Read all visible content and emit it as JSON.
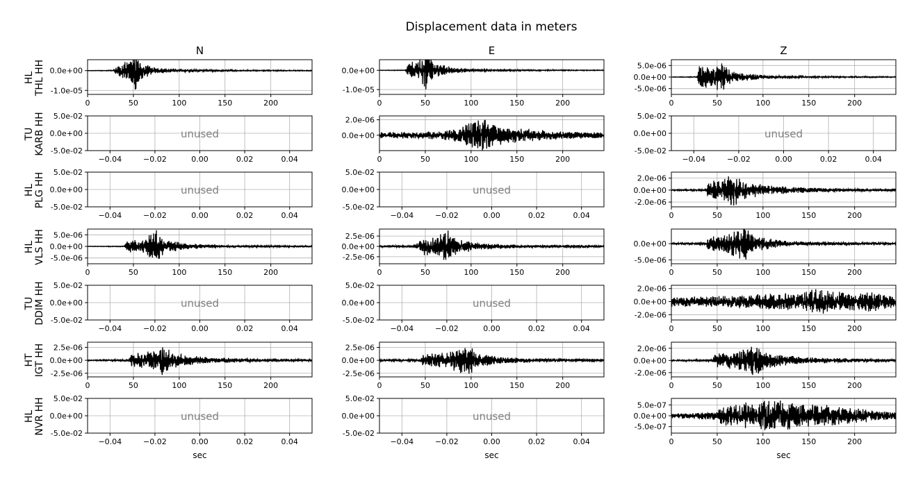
{
  "title": "Displacement data in meters",
  "columns": [
    "N",
    "E",
    "Z"
  ],
  "xlabel": "sec",
  "unused_label": "unused",
  "colors": {
    "trace": "#000000",
    "grid": "#b0b0b0",
    "unused_text": "#808080",
    "axes": "#000000"
  },
  "rows": [
    {
      "network": "HL",
      "station": "THL HH"
    },
    {
      "network": "TU",
      "station": "KARB HH"
    },
    {
      "network": "HL",
      "station": "PLG HH"
    },
    {
      "network": "HL",
      "station": "VLS HH"
    },
    {
      "network": "TU",
      "station": "DDIM HH"
    },
    {
      "network": "HT",
      "station": "IGT HH"
    },
    {
      "network": "HL",
      "station": "NVR HH"
    }
  ],
  "chart_data": [
    {
      "type": "line",
      "row": 0,
      "col": 0,
      "xlim": [
        0,
        245
      ],
      "ylim": [
        -1.2e-05,
        5.5e-06
      ],
      "xticks": [
        0,
        50,
        100,
        150,
        200
      ],
      "yticks": [
        0,
        -1e-05
      ],
      "yticklabels": [
        "0.0e+00",
        "-1.0e-05"
      ],
      "grid": true,
      "envelope": [
        [
          0,
          1e-07
        ],
        [
          28,
          2e-07
        ],
        [
          33,
          3e-06
        ],
        [
          45,
          5e-06
        ],
        [
          52,
          1.1e-05
        ],
        [
          60,
          4e-06
        ],
        [
          75,
          1.5e-06
        ],
        [
          100,
          8e-07
        ],
        [
          150,
          4e-07
        ],
        [
          245,
          2e-07
        ]
      ]
    },
    {
      "type": "line",
      "row": 0,
      "col": 1,
      "xlim": [
        0,
        245
      ],
      "ylim": [
        -1.25e-05,
        5.5e-06
      ],
      "xticks": [
        0,
        50,
        100,
        150,
        200
      ],
      "yticks": [
        0,
        -1e-05
      ],
      "yticklabels": [
        "0.0e+00",
        "-1.0e-05"
      ],
      "grid": true,
      "envelope": [
        [
          0,
          1e-07
        ],
        [
          28,
          2e-07
        ],
        [
          32,
          4e-06
        ],
        [
          45,
          6e-06
        ],
        [
          50,
          1.2e-05
        ],
        [
          60,
          4e-06
        ],
        [
          80,
          1.5e-06
        ],
        [
          100,
          8e-07
        ],
        [
          150,
          4e-07
        ],
        [
          245,
          2e-07
        ]
      ]
    },
    {
      "type": "line",
      "row": 0,
      "col": 2,
      "xlim": [
        0,
        245
      ],
      "ylim": [
        -7.5e-06,
        7.5e-06
      ],
      "xticks": [
        0,
        50,
        100,
        150,
        200
      ],
      "yticks": [
        5e-06,
        0,
        -5e-06
      ],
      "yticklabels": [
        "5.0e-06",
        "0.0e+00",
        "-5.0e-06"
      ],
      "grid": true,
      "envelope": [
        [
          0,
          1e-07
        ],
        [
          28,
          2e-07
        ],
        [
          30,
          5e-06
        ],
        [
          45,
          5e-06
        ],
        [
          55,
          7e-06
        ],
        [
          65,
          2.5e-06
        ],
        [
          100,
          8e-07
        ],
        [
          150,
          4e-07
        ],
        [
          245,
          2e-07
        ]
      ]
    },
    {
      "type": "unused",
      "row": 1,
      "col": 0,
      "xlim": [
        -0.05,
        0.05
      ],
      "ylim": [
        -0.05,
        0.05
      ],
      "xticks": [
        -0.04,
        -0.02,
        0,
        0.02,
        0.04
      ],
      "xticklabels": [
        "−0.04",
        "−0.02",
        "0.00",
        "0.02",
        "0.04"
      ],
      "yticks": [
        0.05,
        0,
        -0.05
      ],
      "yticklabels": [
        "5.0e-02",
        "0.0e+00",
        "-5.0e-02"
      ],
      "grid": true
    },
    {
      "type": "line",
      "row": 1,
      "col": 1,
      "xlim": [
        0,
        245
      ],
      "ylim": [
        -2e-06,
        2.5e-06
      ],
      "xticks": [
        0,
        50,
        100,
        150,
        200
      ],
      "yticks": [
        2e-06,
        0
      ],
      "yticklabels": [
        "2.0e-06",
        "0.0e+00"
      ],
      "grid": true,
      "envelope": [
        [
          0,
          4e-07
        ],
        [
          50,
          5e-07
        ],
        [
          80,
          8e-07
        ],
        [
          100,
          1.8e-06
        ],
        [
          110,
          2.5e-06
        ],
        [
          130,
          1.3e-06
        ],
        [
          150,
          1e-06
        ],
        [
          200,
          5e-07
        ],
        [
          245,
          4e-07
        ]
      ]
    },
    {
      "type": "unused",
      "row": 1,
      "col": 2,
      "xlim": [
        -0.05,
        0.05
      ],
      "ylim": [
        -0.05,
        0.05
      ],
      "xticks": [
        -0.04,
        -0.02,
        0,
        0.02,
        0.04
      ],
      "xticklabels": [
        "−0.04",
        "−0.02",
        "0.00",
        "0.02",
        "0.04"
      ],
      "yticks": [
        0.05,
        0,
        -0.05
      ],
      "yticklabels": [
        "5.0e-02",
        "0.0e+00",
        "-5.0e-02"
      ],
      "grid": true
    },
    {
      "type": "unused",
      "row": 2,
      "col": 0,
      "xlim": [
        -0.05,
        0.05
      ],
      "ylim": [
        -0.05,
        0.05
      ],
      "xticks": [
        -0.04,
        -0.02,
        0,
        0.02,
        0.04
      ],
      "xticklabels": [
        "−0.04",
        "−0.02",
        "0.00",
        "0.02",
        "0.04"
      ],
      "yticks": [
        0.05,
        0,
        -0.05
      ],
      "yticklabels": [
        "5.0e-02",
        "0.0e+00",
        "-5.0e-02"
      ],
      "grid": true
    },
    {
      "type": "unused",
      "row": 2,
      "col": 1,
      "xlim": [
        -0.05,
        0.05
      ],
      "ylim": [
        -0.05,
        0.05
      ],
      "xticks": [
        -0.04,
        -0.02,
        0,
        0.02,
        0.04
      ],
      "xticklabels": [
        "−0.04",
        "−0.02",
        "0.00",
        "0.02",
        "0.04"
      ],
      "yticks": [
        0.05,
        0,
        -0.05
      ],
      "yticklabels": [
        "5.0e-02",
        "0.0e+00",
        "-5.0e-02"
      ],
      "grid": true
    },
    {
      "type": "line",
      "row": 2,
      "col": 2,
      "xlim": [
        0,
        245
      ],
      "ylim": [
        -2.8e-06,
        3e-06
      ],
      "xticks": [
        0,
        50,
        100,
        150,
        200
      ],
      "yticks": [
        2e-06,
        0,
        -2e-06
      ],
      "yticklabels": [
        "2.0e-06",
        "0.0e+00",
        "-2.0e-06"
      ],
      "grid": true,
      "envelope": [
        [
          0,
          1e-07
        ],
        [
          38,
          2e-07
        ],
        [
          40,
          1.5e-06
        ],
        [
          55,
          2e-06
        ],
        [
          68,
          3e-06
        ],
        [
          80,
          1.5e-06
        ],
        [
          100,
          1e-06
        ],
        [
          130,
          6e-07
        ],
        [
          170,
          3e-07
        ],
        [
          245,
          2e-07
        ]
      ]
    },
    {
      "type": "line",
      "row": 3,
      "col": 0,
      "xlim": [
        0,
        245
      ],
      "ylim": [
        -7.5e-06,
        7.5e-06
      ],
      "xticks": [
        0,
        50,
        100,
        150,
        200
      ],
      "yticks": [
        5e-06,
        0,
        -5e-06
      ],
      "yticklabels": [
        "5.0e-06",
        "0.0e+00",
        "-5.0e-06"
      ],
      "grid": true,
      "envelope": [
        [
          0,
          1e-07
        ],
        [
          40,
          2e-07
        ],
        [
          43,
          2.5e-06
        ],
        [
          60,
          3e-06
        ],
        [
          75,
          7.5e-06
        ],
        [
          85,
          3e-06
        ],
        [
          110,
          1.2e-06
        ],
        [
          150,
          5e-07
        ],
        [
          245,
          3e-07
        ]
      ]
    },
    {
      "type": "line",
      "row": 3,
      "col": 1,
      "xlim": [
        0,
        245
      ],
      "ylim": [
        -4.2e-06,
        4.2e-06
      ],
      "xticks": [
        0,
        50,
        100,
        150,
        200
      ],
      "yticks": [
        2.5e-06,
        0,
        -2.5e-06
      ],
      "yticklabels": [
        "2.5e-06",
        "0.0e+00",
        "-2.5e-06"
      ],
      "grid": true,
      "envelope": [
        [
          0,
          2e-07
        ],
        [
          40,
          3e-07
        ],
        [
          42,
          2e-06
        ],
        [
          60,
          2.5e-06
        ],
        [
          75,
          4.2e-06
        ],
        [
          85,
          2e-06
        ],
        [
          110,
          8e-07
        ],
        [
          150,
          4e-07
        ],
        [
          245,
          3e-07
        ]
      ]
    },
    {
      "type": "line",
      "row": 3,
      "col": 2,
      "xlim": [
        0,
        245
      ],
      "ylim": [
        -6.2e-06,
        4.5e-06
      ],
      "xticks": [
        0,
        50,
        100,
        150,
        200
      ],
      "yticks": [
        0,
        -5e-06
      ],
      "yticklabels": [
        "0.0e+00",
        "-5.0e-06"
      ],
      "grid": true,
      "envelope": [
        [
          0,
          3e-07
        ],
        [
          38,
          4e-07
        ],
        [
          40,
          2e-06
        ],
        [
          60,
          3e-06
        ],
        [
          80,
          5.5e-06
        ],
        [
          90,
          2.5e-06
        ],
        [
          120,
          1e-06
        ],
        [
          160,
          5e-07
        ],
        [
          245,
          4e-07
        ]
      ]
    },
    {
      "type": "unused",
      "row": 4,
      "col": 0,
      "xlim": [
        -0.05,
        0.05
      ],
      "ylim": [
        -0.05,
        0.05
      ],
      "xticks": [
        -0.04,
        -0.02,
        0,
        0.02,
        0.04
      ],
      "xticklabels": [
        "−0.04",
        "−0.02",
        "0.00",
        "0.02",
        "0.04"
      ],
      "yticks": [
        0.05,
        0,
        -0.05
      ],
      "yticklabels": [
        "5.0e-02",
        "0.0e+00",
        "-5.0e-02"
      ],
      "grid": true
    },
    {
      "type": "unused",
      "row": 4,
      "col": 1,
      "xlim": [
        -0.05,
        0.05
      ],
      "ylim": [
        -0.05,
        0.05
      ],
      "xticks": [
        -0.04,
        -0.02,
        0,
        0.02,
        0.04
      ],
      "xticklabels": [
        "−0.04",
        "−0.02",
        "0.00",
        "0.02",
        "0.04"
      ],
      "yticks": [
        0.05,
        0,
        -0.05
      ],
      "yticklabels": [
        "5.0e-02",
        "0.0e+00",
        "-5.0e-02"
      ],
      "grid": true
    },
    {
      "type": "line",
      "row": 4,
      "col": 2,
      "xlim": [
        0,
        245
      ],
      "ylim": [
        -2.8e-06,
        2.5e-06
      ],
      "xticks": [
        0,
        50,
        100,
        150,
        200
      ],
      "yticks": [
        2e-06,
        0,
        -2e-06
      ],
      "yticklabels": [
        "2.0e-06",
        "0.0e+00",
        "-2.0e-06"
      ],
      "grid": true,
      "envelope": [
        [
          0,
          8e-07
        ],
        [
          40,
          9e-07
        ],
        [
          80,
          1e-06
        ],
        [
          110,
          1.3e-06
        ],
        [
          140,
          1.6e-06
        ],
        [
          155,
          2.4e-06
        ],
        [
          180,
          1.5e-06
        ],
        [
          215,
          1.6e-06
        ],
        [
          245,
          1e-06
        ]
      ]
    },
    {
      "type": "line",
      "row": 5,
      "col": 0,
      "xlim": [
        0,
        245
      ],
      "ylim": [
        -3.2e-06,
        3.5e-06
      ],
      "xticks": [
        0,
        50,
        100,
        150,
        200
      ],
      "yticks": [
        2.5e-06,
        0,
        -2.5e-06
      ],
      "yticklabels": [
        "2.5e-06",
        "0.0e+00",
        "-2.5e-06"
      ],
      "grid": true,
      "envelope": [
        [
          0,
          1e-07
        ],
        [
          45,
          2e-07
        ],
        [
          48,
          1.4e-06
        ],
        [
          70,
          1.8e-06
        ],
        [
          85,
          3.2e-06
        ],
        [
          95,
          1.5e-06
        ],
        [
          120,
          8e-07
        ],
        [
          160,
          4e-07
        ],
        [
          245,
          2e-07
        ]
      ]
    },
    {
      "type": "line",
      "row": 5,
      "col": 1,
      "xlim": [
        0,
        245
      ],
      "ylim": [
        -3.2e-06,
        3.5e-06
      ],
      "xticks": [
        0,
        50,
        100,
        150,
        200
      ],
      "yticks": [
        2.5e-06,
        0,
        -2.5e-06
      ],
      "yticklabels": [
        "2.5e-06",
        "0.0e+00",
        "-2.5e-06"
      ],
      "grid": true,
      "envelope": [
        [
          0,
          2e-07
        ],
        [
          45,
          3e-07
        ],
        [
          48,
          1.3e-06
        ],
        [
          75,
          1.6e-06
        ],
        [
          98,
          3.2e-06
        ],
        [
          105,
          1.5e-06
        ],
        [
          130,
          7e-07
        ],
        [
          170,
          4e-07
        ],
        [
          245,
          3e-07
        ]
      ]
    },
    {
      "type": "line",
      "row": 5,
      "col": 2,
      "xlim": [
        0,
        245
      ],
      "ylim": [
        -2.7e-06,
        3e-06
      ],
      "xticks": [
        0,
        50,
        100,
        150,
        200
      ],
      "yticks": [
        2e-06,
        0,
        -2e-06
      ],
      "yticklabels": [
        "2.0e-06",
        "0.0e+00",
        "-2.0e-06"
      ],
      "grid": true,
      "envelope": [
        [
          0,
          1e-07
        ],
        [
          45,
          2e-07
        ],
        [
          48,
          1.2e-06
        ],
        [
          70,
          1.5e-06
        ],
        [
          90,
          2.6e-06
        ],
        [
          105,
          1.3e-06
        ],
        [
          140,
          6e-07
        ],
        [
          180,
          4e-07
        ],
        [
          245,
          2e-07
        ]
      ]
    },
    {
      "type": "unused",
      "row": 6,
      "col": 0,
      "xlim": [
        -0.05,
        0.05
      ],
      "ylim": [
        -0.05,
        0.05
      ],
      "xticks": [
        -0.04,
        -0.02,
        0,
        0.02,
        0.04
      ],
      "xticklabels": [
        "−0.04",
        "−0.02",
        "0.00",
        "0.02",
        "0.04"
      ],
      "yticks": [
        0.05,
        0,
        -0.05
      ],
      "yticklabels": [
        "5.0e-02",
        "0.0e+00",
        "-5.0e-02"
      ],
      "grid": true
    },
    {
      "type": "unused",
      "row": 6,
      "col": 1,
      "xlim": [
        -0.05,
        0.05
      ],
      "ylim": [
        -0.05,
        0.05
      ],
      "xticks": [
        -0.04,
        -0.02,
        0,
        0.02,
        0.04
      ],
      "xticklabels": [
        "−0.04",
        "−0.02",
        "0.00",
        "0.02",
        "0.04"
      ],
      "yticks": [
        0.05,
        0,
        -0.05
      ],
      "yticklabels": [
        "5.0e-02",
        "0.0e+00",
        "-5.0e-02"
      ],
      "grid": true
    },
    {
      "type": "line",
      "row": 6,
      "col": 2,
      "xlim": [
        0,
        245
      ],
      "ylim": [
        -8e-07,
        8e-07
      ],
      "xticks": [
        0,
        50,
        100,
        150,
        200
      ],
      "yticks": [
        5e-07,
        0,
        -5e-07
      ],
      "yticklabels": [
        "5.0e-07",
        "0.0e+00",
        "-5.0e-07"
      ],
      "grid": true,
      "envelope": [
        [
          0,
          1e-07
        ],
        [
          25,
          1.5e-07
        ],
        [
          50,
          2e-07
        ],
        [
          55,
          5e-07
        ],
        [
          90,
          6.5e-07
        ],
        [
          110,
          7.5e-07
        ],
        [
          140,
          6e-07
        ],
        [
          175,
          5e-07
        ],
        [
          200,
          3.5e-07
        ],
        [
          245,
          2e-07
        ]
      ]
    }
  ]
}
